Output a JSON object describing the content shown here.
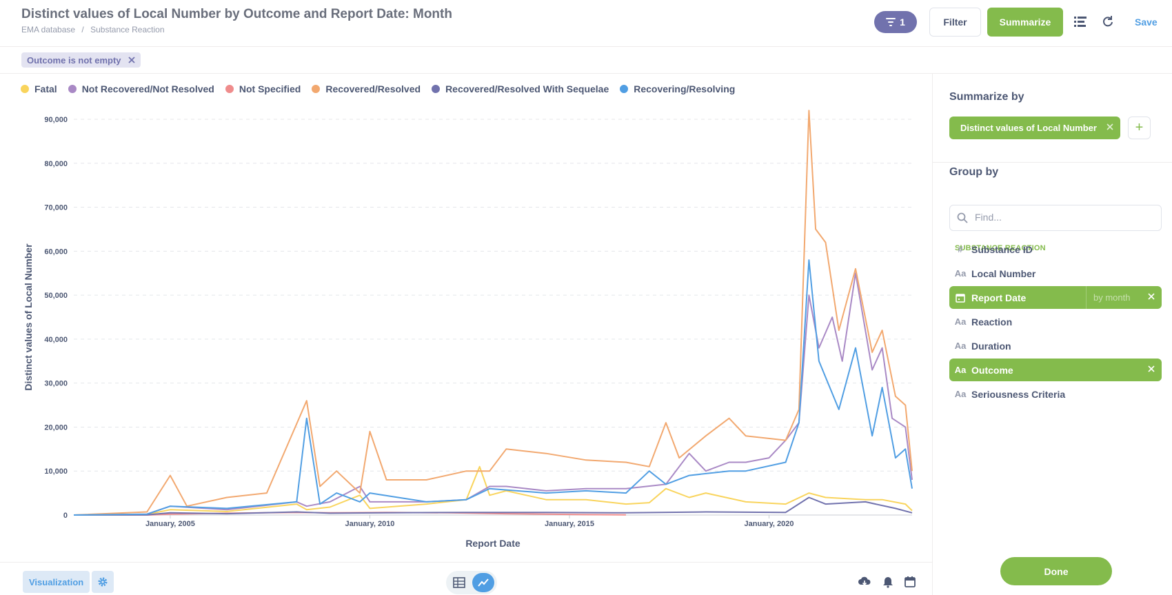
{
  "header": {
    "title": "Distinct values of Local Number by Outcome and Report Date: Month",
    "breadcrumbs": [
      "EMA database",
      "/",
      "Substance Reaction"
    ],
    "filter_count": "1",
    "filter_label": "Filter",
    "summarize_label": "Summarize",
    "save_label": "Save"
  },
  "filters": {
    "pill_label": "Outcome is not empty"
  },
  "footer": {
    "visualization_label": "Visualization"
  },
  "sidebar": {
    "summarize_title": "Summarize by",
    "metric_label": "Distinct values of Local Number",
    "group_title": "Group by",
    "search_placeholder": "Find...",
    "table_name": "SUBSTANCE REACTION",
    "dimensions": [
      {
        "icon": "#",
        "label": "Substance ID"
      },
      {
        "icon": "Aa",
        "label": "Local Number"
      },
      {
        "icon": "calendar",
        "label": "Report Date",
        "bucket": "by month"
      },
      {
        "icon": "Aa",
        "label": "Reaction"
      },
      {
        "icon": "Aa",
        "label": "Duration"
      },
      {
        "icon": "Aa",
        "label": "Outcome"
      },
      {
        "icon": "Aa",
        "label": "Seriousness Criteria"
      }
    ],
    "done_label": "Done"
  },
  "colors": {
    "brand": "#509ee3",
    "summarize": "#84bb4c",
    "filter": "#7172ad"
  },
  "chart_data": {
    "type": "line",
    "xlabel": "Report Date",
    "ylabel": "Distinct values of Local Number",
    "x_ticks": [
      "January, 2005",
      "January, 2010",
      "January, 2015",
      "January, 2020"
    ],
    "y_ticks": [
      "0",
      "10,000",
      "20,000",
      "30,000",
      "40,000",
      "50,000",
      "60,000",
      "70,000",
      "80,000",
      "90,000"
    ],
    "ylim": [
      0,
      90000
    ],
    "x_range": [
      "2002-08",
      "2023-08"
    ],
    "grid": true,
    "legend_position": "top",
    "series": [
      {
        "name": "Fatal",
        "color": "#f9d45c",
        "points": [
          [
            "2002-08",
            0
          ],
          [
            "2004-06",
            150
          ],
          [
            "2005-01",
            1200
          ],
          [
            "2006-06",
            800
          ],
          [
            "2008-03",
            2500
          ],
          [
            "2008-06",
            1200
          ],
          [
            "2009-01",
            1800
          ],
          [
            "2009-10",
            4500
          ],
          [
            "2010-01",
            1500
          ],
          [
            "2011-06",
            2500
          ],
          [
            "2012-06",
            3500
          ],
          [
            "2012-10",
            11000
          ],
          [
            "2013-01",
            4500
          ],
          [
            "2013-06",
            5500
          ],
          [
            "2014-06",
            3500
          ],
          [
            "2015-06",
            3500
          ],
          [
            "2016-06",
            2500
          ],
          [
            "2017-01",
            2800
          ],
          [
            "2017-06",
            6000
          ],
          [
            "2018-01",
            4000
          ],
          [
            "2018-06",
            5000
          ],
          [
            "2019-06",
            3000
          ],
          [
            "2020-06",
            2500
          ],
          [
            "2021-01",
            5000
          ],
          [
            "2021-06",
            4000
          ],
          [
            "2022-06",
            3500
          ],
          [
            "2022-11",
            3500
          ],
          [
            "2023-06",
            2500
          ],
          [
            "2023-08",
            1000
          ]
        ]
      },
      {
        "name": "Not Recovered/Not Resolved",
        "color": "#a989c5",
        "points": [
          [
            "2002-08",
            0
          ],
          [
            "2004-06",
            200
          ],
          [
            "2005-01",
            2000
          ],
          [
            "2006-06",
            1200
          ],
          [
            "2008-03",
            3000
          ],
          [
            "2008-06",
            2000
          ],
          [
            "2009-01",
            3000
          ],
          [
            "2009-10",
            6500
          ],
          [
            "2010-01",
            3000
          ],
          [
            "2011-06",
            3000
          ],
          [
            "2012-06",
            3500
          ],
          [
            "2013-01",
            6500
          ],
          [
            "2013-06",
            6500
          ],
          [
            "2014-06",
            5500
          ],
          [
            "2015-06",
            6000
          ],
          [
            "2016-06",
            6000
          ],
          [
            "2017-06",
            7000
          ],
          [
            "2018-01",
            14000
          ],
          [
            "2018-06",
            10000
          ],
          [
            "2019-01",
            12000
          ],
          [
            "2019-06",
            12000
          ],
          [
            "2020-01",
            13000
          ],
          [
            "2020-06",
            17000
          ],
          [
            "2020-10",
            21000
          ],
          [
            "2021-01",
            50000
          ],
          [
            "2021-04",
            38000
          ],
          [
            "2021-08",
            45000
          ],
          [
            "2021-11",
            35000
          ],
          [
            "2022-03",
            55000
          ],
          [
            "2022-08",
            33000
          ],
          [
            "2022-11",
            38000
          ],
          [
            "2023-02",
            22000
          ],
          [
            "2023-06",
            20000
          ],
          [
            "2023-08",
            8000
          ]
        ]
      },
      {
        "name": "Not Specified",
        "color": "#ef8c8c",
        "points": [
          [
            "2002-08",
            0
          ],
          [
            "2004-06",
            0
          ],
          [
            "2005-01",
            200
          ],
          [
            "2006-06",
            400
          ],
          [
            "2008-03",
            600
          ],
          [
            "2009-01",
            500
          ],
          [
            "2010-06",
            600
          ],
          [
            "2012-01",
            500
          ],
          [
            "2013-06",
            300
          ],
          [
            "2014-06",
            200
          ],
          [
            "2015-06",
            100
          ],
          [
            "2016-06",
            50
          ]
        ]
      },
      {
        "name": "Recovered/Resolved",
        "color": "#f2a86f",
        "points": [
          [
            "2002-08",
            0
          ],
          [
            "2004-06",
            700
          ],
          [
            "2005-01",
            9000
          ],
          [
            "2005-06",
            2000
          ],
          [
            "2006-06",
            4000
          ],
          [
            "2007-06",
            5000
          ],
          [
            "2008-06",
            26000
          ],
          [
            "2008-10",
            6500
          ],
          [
            "2009-03",
            10000
          ],
          [
            "2009-10",
            5000
          ],
          [
            "2010-01",
            19000
          ],
          [
            "2010-06",
            8000
          ],
          [
            "2011-06",
            8000
          ],
          [
            "2012-06",
            10000
          ],
          [
            "2013-01",
            10000
          ],
          [
            "2013-06",
            15000
          ],
          [
            "2014-06",
            14000
          ],
          [
            "2015-06",
            12500
          ],
          [
            "2016-06",
            12000
          ],
          [
            "2017-01",
            11000
          ],
          [
            "2017-06",
            21000
          ],
          [
            "2017-10",
            13000
          ],
          [
            "2018-06",
            18000
          ],
          [
            "2019-01",
            22000
          ],
          [
            "2019-06",
            18000
          ],
          [
            "2020-06",
            17000
          ],
          [
            "2020-10",
            24000
          ],
          [
            "2021-01",
            92000
          ],
          [
            "2021-03",
            65000
          ],
          [
            "2021-06",
            62000
          ],
          [
            "2021-10",
            42000
          ],
          [
            "2022-03",
            56000
          ],
          [
            "2022-08",
            37000
          ],
          [
            "2022-11",
            42000
          ],
          [
            "2023-03",
            27000
          ],
          [
            "2023-06",
            25000
          ],
          [
            "2023-08",
            10000
          ]
        ]
      },
      {
        "name": "Recovered/Resolved With Sequelae",
        "color": "#7172ad",
        "points": [
          [
            "2002-08",
            0
          ],
          [
            "2004-06",
            50
          ],
          [
            "2005-01",
            500
          ],
          [
            "2006-06",
            300
          ],
          [
            "2008-03",
            700
          ],
          [
            "2009-01",
            400
          ],
          [
            "2010-06",
            500
          ],
          [
            "2012-06",
            600
          ],
          [
            "2014-06",
            600
          ],
          [
            "2016-06",
            500
          ],
          [
            "2018-06",
            700
          ],
          [
            "2020-06",
            600
          ],
          [
            "2021-01",
            4000
          ],
          [
            "2021-06",
            2500
          ],
          [
            "2022-06",
            3000
          ],
          [
            "2023-03",
            1500
          ],
          [
            "2023-08",
            500
          ]
        ]
      },
      {
        "name": "Recovering/Resolving",
        "color": "#509ee3",
        "points": [
          [
            "2002-08",
            0
          ],
          [
            "2004-06",
            200
          ],
          [
            "2005-01",
            2000
          ],
          [
            "2006-06",
            1500
          ],
          [
            "2008-03",
            3000
          ],
          [
            "2008-06",
            22000
          ],
          [
            "2008-10",
            2500
          ],
          [
            "2009-03",
            5000
          ],
          [
            "2009-10",
            3000
          ],
          [
            "2010-01",
            5000
          ],
          [
            "2011-06",
            3000
          ],
          [
            "2012-06",
            3500
          ],
          [
            "2013-01",
            6000
          ],
          [
            "2014-06",
            5000
          ],
          [
            "2015-06",
            5500
          ],
          [
            "2016-06",
            5000
          ],
          [
            "2017-01",
            10000
          ],
          [
            "2017-06",
            7000
          ],
          [
            "2018-01",
            9000
          ],
          [
            "2019-01",
            10000
          ],
          [
            "2019-06",
            10000
          ],
          [
            "2020-06",
            12000
          ],
          [
            "2020-10",
            21000
          ],
          [
            "2021-01",
            58000
          ],
          [
            "2021-04",
            35000
          ],
          [
            "2021-10",
            24000
          ],
          [
            "2022-03",
            38000
          ],
          [
            "2022-08",
            18000
          ],
          [
            "2022-11",
            29000
          ],
          [
            "2023-03",
            13000
          ],
          [
            "2023-06",
            15000
          ],
          [
            "2023-08",
            6000
          ]
        ]
      }
    ]
  }
}
